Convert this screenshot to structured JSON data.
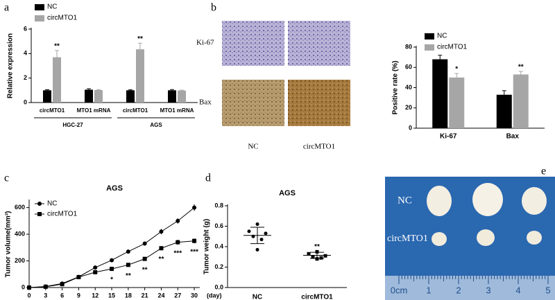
{
  "panel_labels": [
    "a",
    "b",
    "c",
    "d",
    "e"
  ],
  "chart_data": [
    {
      "type": "bar",
      "ylabel": "Relative expression",
      "categories": [
        "circMTO1",
        "MTO1 mRNA",
        "circMTO1",
        "MTO1 mRNA"
      ],
      "groups": [
        "HGC-27",
        "AGS"
      ],
      "series": [
        {
          "name": "NC",
          "color": "#000000",
          "values": [
            1,
            1.05,
            1,
            1
          ],
          "errors": [
            0.05,
            0.08,
            0.04,
            0.06
          ]
        },
        {
          "name": "circMTO1",
          "color": "#a6a6a6",
          "values": [
            3.7,
            1.02,
            4.35,
            0.98
          ],
          "errors": [
            0.55,
            0.04,
            0.5,
            0.03
          ],
          "significance": [
            "**",
            null,
            "**",
            null
          ]
        }
      ],
      "ylim": [
        0,
        6
      ],
      "yticks": [
        0,
        2,
        4,
        6
      ],
      "legend": "top-left"
    },
    {
      "type": "bar",
      "ylabel": "Positive rate (%)",
      "categories": [
        "Ki-67",
        "Bax"
      ],
      "series": [
        {
          "name": "NC",
          "color": "#000000",
          "values": [
            68,
            33
          ],
          "errors": [
            4,
            4
          ]
        },
        {
          "name": "circMTO1",
          "color": "#a6a6a6",
          "values": [
            50,
            53
          ],
          "errors": [
            4,
            3
          ],
          "significance": [
            "*",
            "**"
          ]
        }
      ],
      "ylim": [
        0,
        80
      ],
      "yticks": [
        0,
        20,
        40,
        60,
        80
      ],
      "legend": "top"
    },
    {
      "type": "line",
      "title": "AGS",
      "ylabel": "Tumor volume(mm³)",
      "xunit": "(day)",
      "x": [
        0,
        3,
        6,
        9,
        12,
        15,
        18,
        21,
        24,
        27,
        30
      ],
      "xlim": [
        0,
        31
      ],
      "xticks": [
        0,
        3,
        6,
        9,
        12,
        15,
        18,
        21,
        24,
        27,
        30
      ],
      "ylim": [
        0,
        650
      ],
      "yticks": [
        0,
        200,
        400,
        600
      ],
      "series": [
        {
          "name": "NC",
          "color": "#000000",
          "marker": "circle",
          "values": [
            0,
            8,
            30,
            80,
            150,
            205,
            270,
            330,
            420,
            500,
            600
          ],
          "errors": [
            0,
            3,
            5,
            8,
            10,
            10,
            15,
            15,
            20,
            20,
            25
          ]
        },
        {
          "name": "circMTO1",
          "color": "#000000",
          "marker": "square",
          "values": [
            0,
            6,
            25,
            78,
            115,
            140,
            170,
            215,
            295,
            340,
            350
          ],
          "errors": [
            0,
            3,
            4,
            6,
            8,
            8,
            10,
            12,
            15,
            18,
            18
          ],
          "significance": [
            null,
            null,
            null,
            null,
            null,
            "*",
            "**",
            "**",
            "**",
            "***",
            "***"
          ]
        }
      ],
      "legend": "top-left"
    },
    {
      "type": "dot",
      "title": "AGS",
      "ylabel": "Tumor weight (g)",
      "categories": [
        "NC",
        "circMTO1"
      ],
      "markers": [
        "circle",
        "square"
      ],
      "values": [
        [
          0.62,
          0.55,
          0.53,
          0.5,
          0.47,
          0.37
        ],
        [
          0.35,
          0.33,
          0.31,
          0.3,
          0.29,
          0.28
        ]
      ],
      "means": [
        0.51,
        0.315
      ],
      "sds": [
        0.08,
        0.03
      ],
      "significance": [
        null,
        "**"
      ],
      "ylim": [
        0,
        0.8
      ],
      "yticks": [
        {
          "value": 0,
          "label": "0.0"
        },
        0.2,
        0.4,
        0.6,
        0.8
      ]
    }
  ],
  "images_b": {
    "rows": [
      "Ki-67",
      "Bax"
    ],
    "cols": [
      "NC",
      "circMTO1"
    ]
  },
  "photo_e": {
    "rows": [
      "NC",
      "circMTO1"
    ],
    "ruler": [
      "0cm",
      "1",
      "2",
      "3",
      "4",
      "5"
    ]
  }
}
